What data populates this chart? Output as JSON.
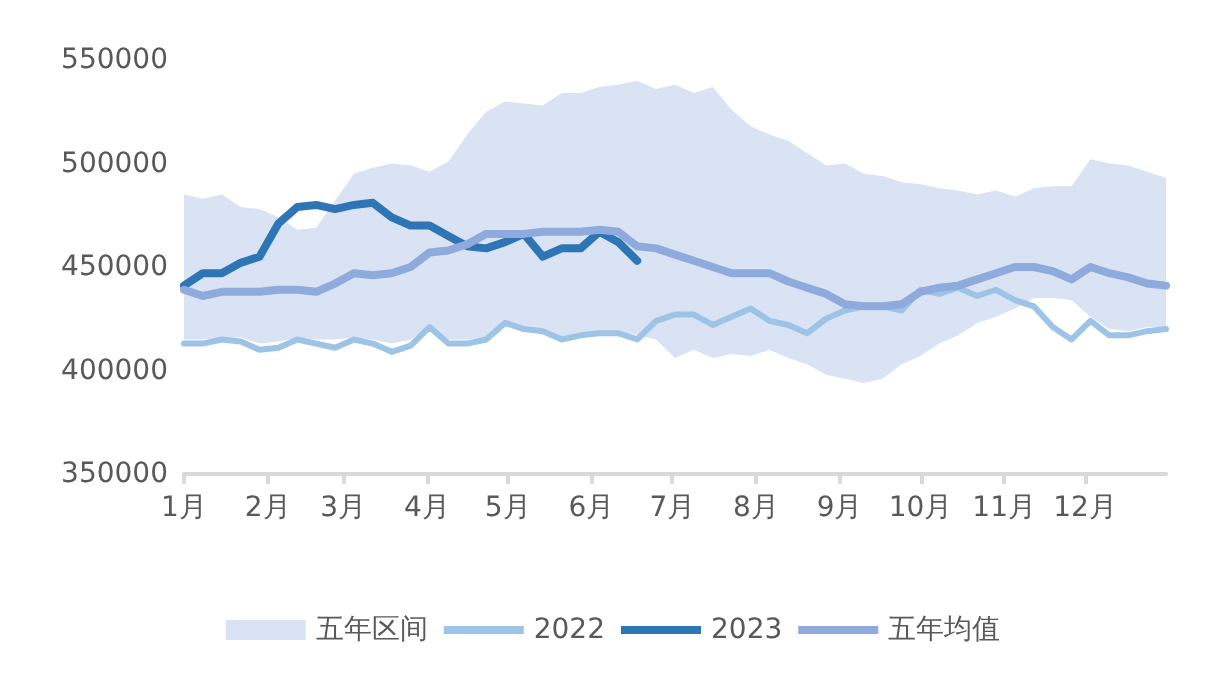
{
  "chart_data": {
    "type": "line",
    "x": [
      "--01-01",
      "--01-08",
      "--01-15",
      "--01-22",
      "--01-29",
      "--02-05",
      "--02-12",
      "--02-19",
      "--02-26",
      "--03-05",
      "--03-12",
      "--03-19",
      "--03-26",
      "--04-02",
      "--04-09",
      "--04-16",
      "--04-23",
      "--04-30",
      "--05-07",
      "--05-14",
      "--05-21",
      "--05-28",
      "--06-04",
      "--06-11",
      "--06-18",
      "--06-25",
      "--07-02",
      "--07-09",
      "--07-16",
      "--07-23",
      "--07-30",
      "--08-06",
      "--08-13",
      "--08-20",
      "--08-27",
      "--09-03",
      "--09-10",
      "--09-17",
      "--09-24",
      "--10-01",
      "--10-08",
      "--10-15",
      "--10-22",
      "--10-29",
      "--11-05",
      "--11-12",
      "--11-19",
      "--11-26",
      "--12-03",
      "--12-10",
      "--12-17",
      "--12-24",
      "--12-31"
    ],
    "series": [
      {
        "name": "五年区间",
        "type": "area",
        "color": "#dae3f3",
        "lower": [
          415000,
          415000,
          416000,
          416000,
          413000,
          414000,
          416000,
          415000,
          415000,
          416000,
          415000,
          413000,
          415000,
          421000,
          415000,
          415000,
          416000,
          423000,
          421000,
          420000,
          416000,
          418000,
          419000,
          419000,
          417000,
          415000,
          406000,
          410000,
          406000,
          408000,
          407000,
          410000,
          406000,
          403000,
          398000,
          396000,
          394000,
          396000,
          403000,
          407000,
          413000,
          417000,
          423000,
          426000,
          430000,
          435000,
          435000,
          434000,
          426000,
          420000,
          419000,
          421000,
          421000
        ],
        "values": [
          null,
          null,
          null,
          null,
          null,
          null,
          null,
          null,
          null,
          null,
          null,
          null,
          null,
          null,
          null,
          null,
          null,
          null,
          null,
          null,
          null,
          null,
          null,
          null,
          null,
          null,
          null,
          null,
          null,
          null,
          null,
          null,
          null,
          null,
          null,
          null,
          null,
          null,
          null,
          null,
          null,
          null,
          null,
          null,
          null,
          null,
          null,
          null,
          null,
          null,
          null,
          null,
          null
        ],
        "upper": [
          485000,
          483000,
          485000,
          479000,
          478000,
          474000,
          468000,
          469000,
          482000,
          495000,
          498000,
          500000,
          499000,
          496000,
          501000,
          514000,
          525000,
          530000,
          529000,
          528000,
          534000,
          534000,
          537000,
          538000,
          540000,
          536000,
          538000,
          534000,
          537000,
          526000,
          518000,
          514000,
          511000,
          505000,
          499000,
          500000,
          495000,
          494000,
          491000,
          490000,
          488000,
          487000,
          485000,
          487000,
          484000,
          488000,
          489000,
          489000,
          502000,
          500000,
          499000,
          496000,
          493000
        ]
      },
      {
        "name": "2022",
        "color": "#9dc3e6",
        "values": [
          413000,
          413000,
          415000,
          414000,
          410000,
          411000,
          415000,
          413000,
          411000,
          415000,
          413000,
          409000,
          412000,
          421000,
          413000,
          413000,
          415000,
          423000,
          420000,
          419000,
          415000,
          417000,
          418000,
          418000,
          415000,
          424000,
          427000,
          427000,
          422000,
          426000,
          430000,
          424000,
          422000,
          418000,
          425000,
          429000,
          431000,
          431000,
          429000,
          439000,
          437000,
          440000,
          436000,
          439000,
          434000,
          431000,
          421000,
          415000,
          424000,
          417000,
          417000,
          419000,
          420000
        ]
      },
      {
        "name": "2023",
        "color": "#2e75b6",
        "x": [
          "--01-01",
          "--01-08",
          "--01-15",
          "--01-22",
          "--01-29",
          "--02-05",
          "--02-12",
          "--02-19",
          "--02-26",
          "--03-05",
          "--03-12",
          "--03-19",
          "--03-26",
          "--04-02",
          "--04-09",
          "--04-16",
          "--04-23",
          "--04-30",
          "--05-07",
          "--05-14",
          "--05-21",
          "--05-28",
          "--06-04",
          "--06-11",
          "--06-18"
        ],
        "values": [
          441000,
          447000,
          447000,
          452000,
          455000,
          471000,
          479000,
          480000,
          478000,
          480000,
          481000,
          474000,
          470000,
          470000,
          465000,
          460000,
          459000,
          462000,
          466000,
          455000,
          459000,
          459000,
          467000,
          462000,
          453000
        ]
      },
      {
        "name": "五年均值",
        "color": "#8faadc",
        "values": [
          439000,
          436000,
          438000,
          438000,
          438000,
          439000,
          439000,
          438000,
          442000,
          447000,
          446000,
          447000,
          450000,
          457000,
          458000,
          461000,
          466000,
          466000,
          466000,
          467000,
          467000,
          467000,
          468000,
          467000,
          460000,
          459000,
          456000,
          453000,
          450000,
          447000,
          447000,
          447000,
          443000,
          440000,
          437000,
          432000,
          431000,
          431000,
          432000,
          438000,
          440000,
          441000,
          444000,
          447000,
          450000,
          450000,
          448000,
          444000,
          450000,
          447000,
          445000,
          442000,
          441000
        ]
      }
    ],
    "xlim": [
      "--01-01",
      "--12-31"
    ],
    "xticks": [
      {
        "value": "--01-01",
        "label": "1月"
      },
      {
        "value": "--02-01",
        "label": "2月"
      },
      {
        "value": "--03-01",
        "label": "3月"
      },
      {
        "value": "--04-01",
        "label": "4月"
      },
      {
        "value": "--05-01",
        "label": "5月"
      },
      {
        "value": "--06-01",
        "label": "6月"
      },
      {
        "value": "--07-01",
        "label": "7月"
      },
      {
        "value": "--08-01",
        "label": "8月"
      },
      {
        "value": "--09-01",
        "label": "9月"
      },
      {
        "value": "--10-01",
        "label": "10月"
      },
      {
        "value": "--11-01",
        "label": "11月"
      },
      {
        "value": "--12-01",
        "label": "12月"
      }
    ],
    "ylim": [
      350000,
      550000
    ],
    "yticks": [
      350000,
      400000,
      450000,
      500000,
      550000
    ],
    "grid": false,
    "legend": "bottom",
    "marker": "none"
  }
}
